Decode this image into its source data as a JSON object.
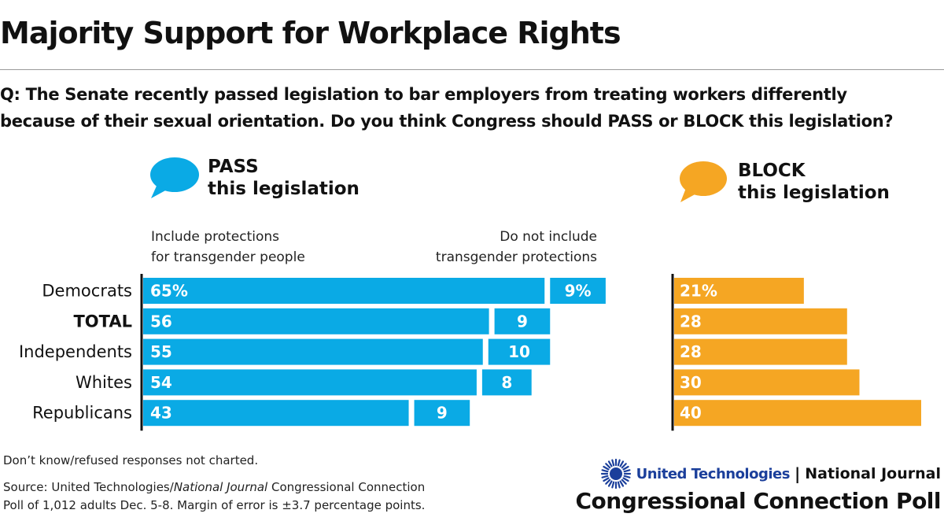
{
  "title": "Majority Support for Workplace Rights",
  "question": {
    "line1": "Q: The Senate recently passed legislation to bar employers from treating workers differently",
    "line2": "because of their sexual orientation. Do you think Congress should PASS or BLOCK this legislation?"
  },
  "legend": {
    "pass_line1": "PASS",
    "pass_line2": "this legislation",
    "block_line1": "BLOCK",
    "block_line2": "this legislation"
  },
  "subheads": {
    "include_line1": "Include protections",
    "include_line2": "for transgender people",
    "notinclude_line1": "Do not include",
    "notinclude_line2": "transgender protections"
  },
  "colors": {
    "pass": "#0aaae5",
    "block": "#f5a623",
    "axis": "#111111",
    "utblue": "#1b3f9b"
  },
  "chart_data": {
    "type": "bar",
    "categories": [
      "Democrats",
      "TOTAL",
      "Independents",
      "Whites",
      "Republicans"
    ],
    "bold_category": "TOTAL",
    "series": [
      {
        "values": [
          65,
          56,
          55,
          54,
          43
        ],
        "labels": [
          "65%",
          "56",
          "55",
          "54",
          "43"
        ]
      },
      {
        "values": [
          9,
          9,
          10,
          8,
          9
        ],
        "labels": [
          "9%",
          "9",
          "10",
          "8",
          "9"
        ]
      },
      {
        "values": [
          21,
          28,
          28,
          30,
          40
        ],
        "labels": [
          "21%",
          "28",
          "28",
          "30",
          "40"
        ]
      }
    ]
  },
  "footnote": "Don’t know/refused responses not charted.",
  "source": {
    "line1_prefix": "Source: United Technologies/",
    "line1_italic": "National Journal",
    "line1_suffix": " Congressional Connection",
    "line2": "Poll of 1,012 adults Dec. 5-8. Margin of error is ±3.7 percentage points."
  },
  "sponsor": {
    "ut": "United Technologies",
    "sep": "|",
    "nj": "National Journal",
    "poll": "Congressional Connection Poll"
  }
}
